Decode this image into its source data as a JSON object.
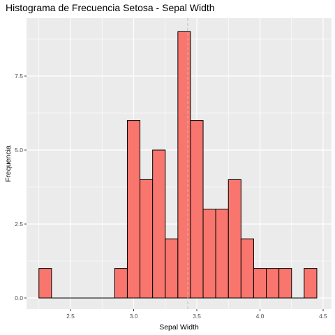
{
  "chart_data": {
    "type": "bar",
    "subtype": "histogram",
    "title": "Histograma de Frecuencia Setosa - Sepal Width",
    "xlabel": "Sepal Width",
    "ylabel": "Frequencia",
    "xlim": [
      2.2,
      4.5
    ],
    "ylim": [
      0,
      9
    ],
    "bin_width": 0.1,
    "bins": [
      {
        "x0": 2.25,
        "x1": 2.35,
        "count": 1
      },
      {
        "x0": 2.35,
        "x1": 2.45,
        "count": 0
      },
      {
        "x0": 2.45,
        "x1": 2.55,
        "count": 0
      },
      {
        "x0": 2.55,
        "x1": 2.65,
        "count": 0
      },
      {
        "x0": 2.65,
        "x1": 2.75,
        "count": 0
      },
      {
        "x0": 2.75,
        "x1": 2.85,
        "count": 0
      },
      {
        "x0": 2.85,
        "x1": 2.95,
        "count": 1
      },
      {
        "x0": 2.95,
        "x1": 3.05,
        "count": 6
      },
      {
        "x0": 3.05,
        "x1": 3.15,
        "count": 4
      },
      {
        "x0": 3.15,
        "x1": 3.25,
        "count": 5
      },
      {
        "x0": 3.25,
        "x1": 3.35,
        "count": 2
      },
      {
        "x0": 3.35,
        "x1": 3.45,
        "count": 9
      },
      {
        "x0": 3.45,
        "x1": 3.55,
        "count": 6
      },
      {
        "x0": 3.55,
        "x1": 3.65,
        "count": 3
      },
      {
        "x0": 3.65,
        "x1": 3.75,
        "count": 3
      },
      {
        "x0": 3.75,
        "x1": 3.85,
        "count": 4
      },
      {
        "x0": 3.85,
        "x1": 3.95,
        "count": 2
      },
      {
        "x0": 3.95,
        "x1": 4.05,
        "count": 1
      },
      {
        "x0": 4.05,
        "x1": 4.15,
        "count": 1
      },
      {
        "x0": 4.15,
        "x1": 4.25,
        "count": 1
      },
      {
        "x0": 4.25,
        "x1": 4.35,
        "count": 0
      },
      {
        "x0": 4.35,
        "x1": 4.45,
        "count": 1
      }
    ],
    "x_ticks": [
      2.5,
      3.0,
      3.5,
      4.0,
      4.5
    ],
    "x_tick_labels": [
      "2.5",
      "3.0",
      "3.5",
      "4.0",
      "4.5"
    ],
    "y_ticks": [
      0,
      2.5,
      5,
      7.5
    ],
    "y_tick_labels": [
      "0.0",
      "2.5",
      "5.0",
      "7.5"
    ],
    "mean_line": {
      "x": 3.428,
      "style": "dashed"
    },
    "grid": true,
    "colors": {
      "bar_fill": "#F8766D",
      "bar_stroke": "#000000",
      "panel_background": "#EBEBEB",
      "grid": "#FFFFFF",
      "mean_line": "#BEBEBE"
    }
  }
}
